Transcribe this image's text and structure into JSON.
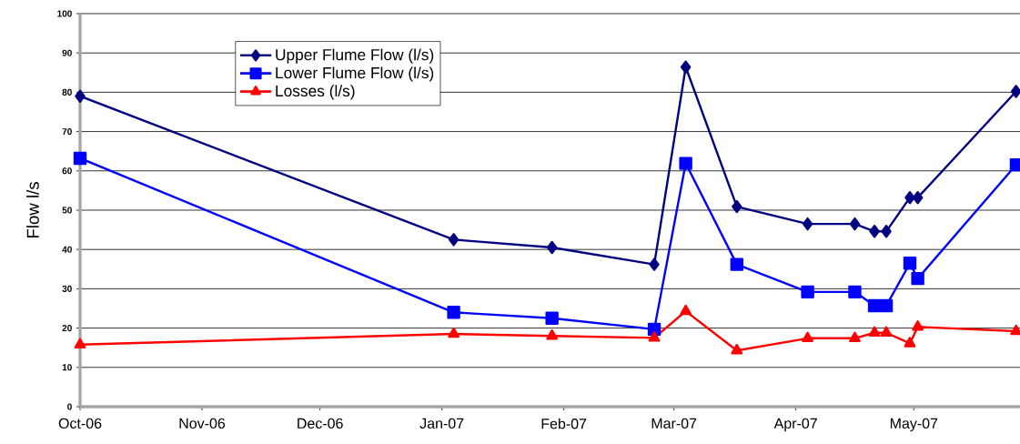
{
  "chart_data": {
    "type": "line",
    "ylabel": "Flow l/s",
    "x": [
      "2006-10-01",
      "2007-01-04",
      "2007-01-29",
      "2007-02-24",
      "2007-03-04",
      "2007-03-17",
      "2007-04-04",
      "2007-04-16",
      "2007-04-21",
      "2007-04-24",
      "2007-04-30",
      "2007-05-02",
      "2007-05-27"
    ],
    "series": [
      {
        "name": "Upper Flume Flow (l/s)",
        "color": "#000080",
        "marker": "diamond",
        "values": [
          79,
          42.5,
          40.5,
          36.2,
          86.4,
          50.9,
          46.5,
          46.5,
          44.6,
          44.6,
          53.2,
          53.2,
          80.2
        ]
      },
      {
        "name": "Lower Flume Flow (l/s)",
        "color": "#0000ff",
        "marker": "square",
        "values": [
          63.2,
          24,
          22.5,
          19.7,
          61.9,
          36.2,
          29.2,
          29.2,
          25.7,
          25.7,
          36.5,
          32.6,
          61.5
        ]
      },
      {
        "name": "Losses (l/s)",
        "color": "#ff0000",
        "marker": "triangle",
        "values": [
          15.8,
          18.5,
          18,
          17.5,
          24.3,
          14.3,
          17.4,
          17.4,
          18.8,
          18.8,
          16.1,
          20.3,
          19.2
        ]
      }
    ],
    "xlim": [
      "2006-10-01",
      "2007-05-28"
    ],
    "xticks": [
      {
        "value": "2006-10-01",
        "label": "Oct-06"
      },
      {
        "value": "2006-11-01",
        "label": "Nov-06"
      },
      {
        "value": "2006-12-01",
        "label": "Dec-06"
      },
      {
        "value": "2007-01-01",
        "label": "Jan-07"
      },
      {
        "value": "2007-02-01",
        "label": "Feb-07"
      },
      {
        "value": "2007-03-01",
        "label": "Mar-07"
      },
      {
        "value": "2007-04-01",
        "label": "Apr-07"
      },
      {
        "value": "2007-05-01",
        "label": "May-07"
      }
    ],
    "ylim": [
      0,
      100
    ],
    "yticks": [
      0,
      10,
      20,
      30,
      40,
      50,
      60,
      70,
      80,
      90,
      100
    ],
    "grid": "y",
    "legend": "top left",
    "line_style": "solid"
  }
}
